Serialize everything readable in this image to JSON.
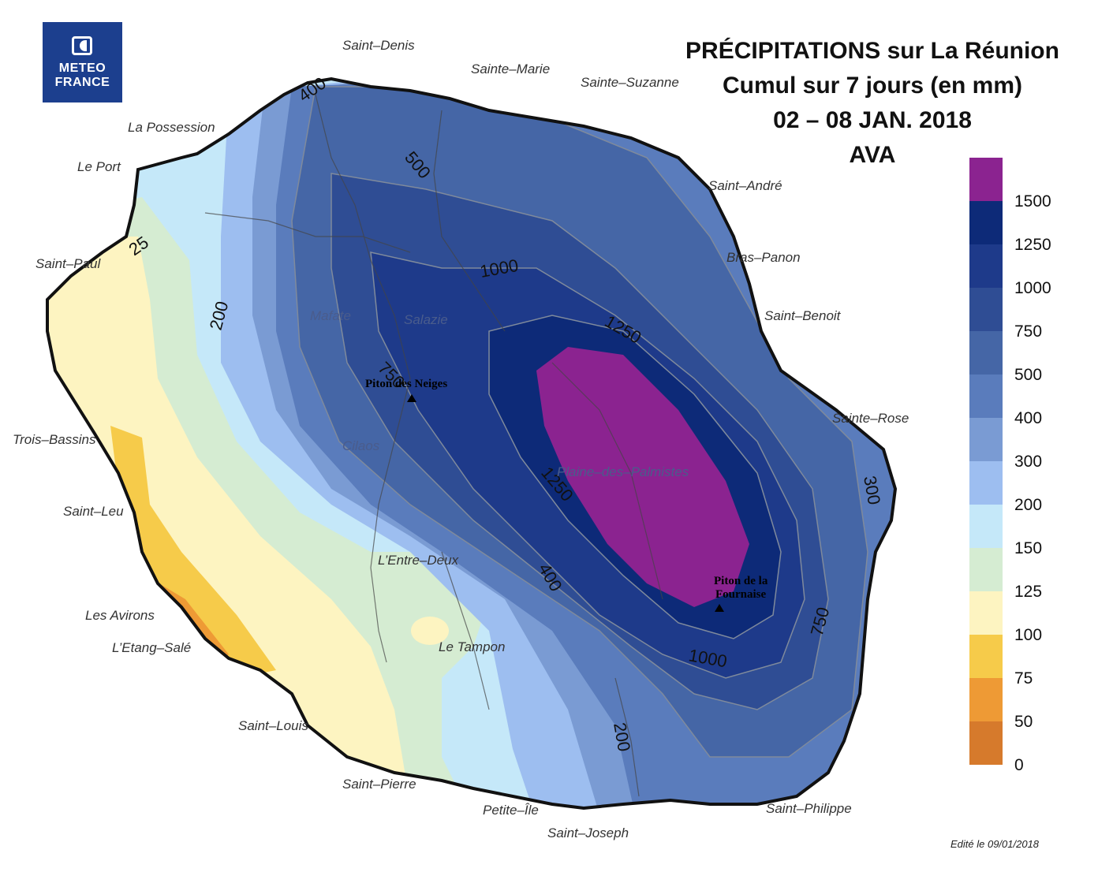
{
  "logo": {
    "line1": "METEO",
    "line2": "FRANCE"
  },
  "title": {
    "line1": "PRÉCIPITATIONS sur La Réunion",
    "line2": "Cumul sur 7 jours (en mm)",
    "line3": "02 – 08 JAN. 2018",
    "line4": "AVA"
  },
  "towns": {
    "saint_denis": "Saint–Denis",
    "sainte_marie": "Sainte–Marie",
    "sainte_suzanne": "Sainte–Suzanne",
    "la_possession": "La Possession",
    "le_port": "Le Port",
    "saint_andre": "Saint–André",
    "saint_paul": "Saint–Paul",
    "bras_panon": "Bras–Panon",
    "saint_benoit": "Saint–Benoit",
    "sainte_rose": "Sainte–Rose",
    "trois_bassins": "Trois–Bassins",
    "saint_leu": "Saint–Leu",
    "les_avirons": "Les Avirons",
    "etang_sale": "L’Etang–Salé",
    "saint_louis": "Saint–Louis",
    "saint_pierre": "Saint–Pierre",
    "petite_ile": "Petite–Île",
    "saint_joseph": "Saint–Joseph",
    "saint_philippe": "Saint–Philippe"
  },
  "inland": {
    "mafate": "Mafate",
    "salazie": "Salazie",
    "cilaos": "Cilaos",
    "plaine": "Plaine–des–Palmistes",
    "entre_deux": "L’Entre–Deux",
    "le_tampon": "Le Tampon"
  },
  "peaks": {
    "piton_neiges": "Piton des Neiges",
    "fournaise_1": "Piton de la",
    "fournaise_2": "Fournaise"
  },
  "contour_labels": {
    "c400a": "400",
    "c500": "500",
    "c1000a": "1000",
    "c200a": "200",
    "c25": "25",
    "c750a": "750",
    "c1250a": "1250",
    "c1250b": "1250",
    "c300": "300",
    "c400b": "400",
    "c1000b": "1000",
    "c750b": "750",
    "c200b": "200"
  },
  "colorbar": {
    "ticks": [
      "1500",
      "1250",
      "1000",
      "750",
      "500",
      "400",
      "300",
      "200",
      "150",
      "125",
      "100",
      "75",
      "50",
      "0"
    ],
    "colors": [
      "#8b2390",
      "#0d2a78",
      "#1e3a8a",
      "#2f4d94",
      "#4566a6",
      "#5a7cbc",
      "#7a9bd3",
      "#9dbef0",
      "#c5e8f9",
      "#d5ecd2",
      "#fdf4c1",
      "#f6cb4a",
      "#ee9a35",
      "#d67a2c"
    ]
  },
  "edited": "Edité le 09/01/2018"
}
